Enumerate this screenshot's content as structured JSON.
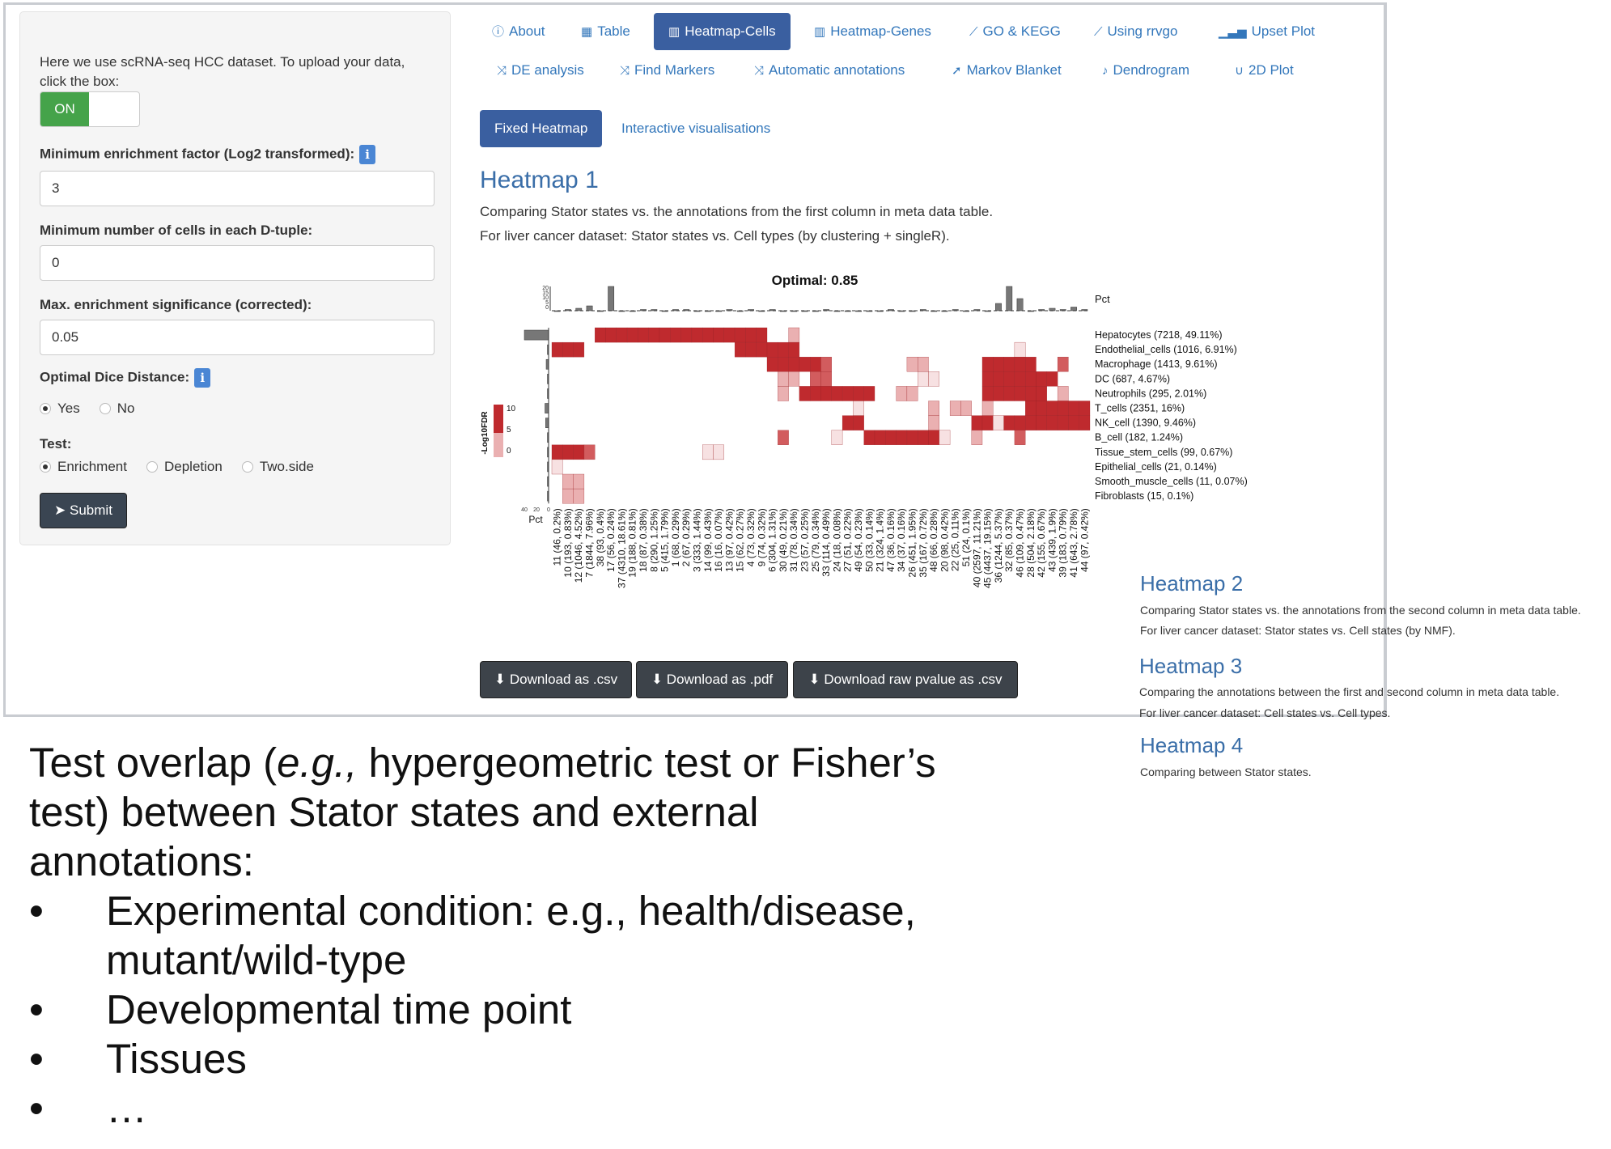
{
  "sidebar": {
    "intro_text": "Here we use scRNA-seq HCC dataset. To upload your data, click the box:",
    "toggle_label": "ON",
    "min_enrichment_label": "Minimum enrichment factor (Log2 transformed):",
    "min_enrichment_value": "3",
    "min_cells_label": "Minimum number of cells in each D-tuple:",
    "min_cells_value": "0",
    "max_sig_label": "Max. enrichment significance (corrected):",
    "max_sig_value": "0.05",
    "dice_label": "Optimal Dice Distance:",
    "dice_options": [
      "Yes",
      "No"
    ],
    "dice_selected": "Yes",
    "test_label": "Test:",
    "test_options": [
      "Enrichment",
      "Depletion",
      "Two.side"
    ],
    "test_selected": "Enrichment",
    "submit_label": "Submit",
    "info_icon": "i"
  },
  "tabs_row1": [
    {
      "label": "About",
      "icon": "info-icon",
      "glyph": "ⓘ"
    },
    {
      "label": "Table",
      "icon": "table-icon",
      "glyph": "▦"
    },
    {
      "label": "Heatmap-Cells",
      "icon": "map-icon",
      "glyph": "🗺",
      "active": true
    },
    {
      "label": "Heatmap-Genes",
      "icon": "map-icon",
      "glyph": "🗺"
    },
    {
      "label": "GO & KEGG",
      "icon": "line-chart-icon",
      "glyph": "📈"
    },
    {
      "label": "Using rrvgo",
      "icon": "line-chart-icon",
      "glyph": "📈"
    },
    {
      "label": "Upset Plot",
      "icon": "signal-icon",
      "glyph": "📶"
    }
  ],
  "tabs_row2": [
    {
      "label": "DE analysis",
      "icon": "random-icon",
      "glyph": "⤨"
    },
    {
      "label": "Find Markers",
      "icon": "random-icon",
      "glyph": "⤨"
    },
    {
      "label": "Automatic annotations",
      "icon": "random-icon",
      "glyph": "⤨"
    },
    {
      "label": "Markov Blanket",
      "icon": "location-arrow-icon",
      "glyph": "➤"
    },
    {
      "label": "Dendrogram",
      "icon": "bell-icon",
      "glyph": "🔔"
    },
    {
      "label": "2D Plot",
      "icon": "magnet-icon",
      "glyph": "∪"
    }
  ],
  "subtabs": {
    "fixed": "Fixed Heatmap",
    "interactive": "Interactive visualisations"
  },
  "heatmap1": {
    "title": "Heatmap 1",
    "desc1": "Comparing Stator states vs. the annotations from the first column in meta data table.",
    "desc2": "For liver cancer dataset: Stator states vs. Cell types (by clustering + singleR)."
  },
  "heatmap_figure": {
    "title": "Optimal: 0.85",
    "pct_label": "Pct",
    "legend_title": "-Log10FDR",
    "legend_ticks": [
      "10",
      "5",
      "0"
    ],
    "top_ticks": [
      "20",
      "15",
      "10",
      "5",
      "0"
    ],
    "bottom_ticks": [
      "0",
      "20",
      "40"
    ],
    "rows": [
      "Hepatocytes (7218, 49.11%)",
      "Endothelial_cells (1016, 6.91%)",
      "Macrophage (1413, 9.61%)",
      "DC (687, 4.67%)",
      "Neutrophils (295, 2.01%)",
      "T_cells (2351, 16%)",
      "NK_cell (1390, 9.46%)",
      "B_cell (182, 1.24%)",
      "Tissue_stem_cells (99, 0.67%)",
      "Epithelial_cells (21, 0.14%)",
      "Smooth_muscle_cells (11, 0.07%)",
      "Fibroblasts (15, 0.1%)"
    ],
    "columns": [
      "11 (46, 0.2%)",
      "10 (193, 0.83%)",
      "12 (1046, 4.52%)",
      "7 (1844, 7.96%)",
      "38 (93, 0.4%)",
      "17 (56, 0.24%)",
      "37 (4310, 18.61%)",
      "19 (188, 0.81%)",
      "18 (87, 0.38%)",
      "8 (290, 1.25%)",
      "5 (415, 1.79%)",
      "1 (68, 0.29%)",
      "2 (67, 0.29%)",
      "3 (333, 1.44%)",
      "14 (99, 0.43%)",
      "16 (16, 0.07%)",
      "13 (97, 0.42%)",
      "15 (62, 0.27%)",
      "4 (73, 0.32%)",
      "9 (74, 0.32%)",
      "6 (304, 1.31%)",
      "30 (49, 0.21%)",
      "31 (78, 0.34%)",
      "23 (57, 0.25%)",
      "25 (79, 0.34%)",
      "33 (114, 0.49%)",
      "24 (18, 0.08%)",
      "27 (51, 0.22%)",
      "49 (54, 0.23%)",
      "50 (33, 0.14%)",
      "21 (324, 1.4%)",
      "47 (36, 0.16%)",
      "34 (37, 0.16%)",
      "26 (451, 1.95%)",
      "35 (167, 0.72%)",
      "48 (66, 0.28%)",
      "20 (98, 0.42%)",
      "22 (25, 0.11%)",
      "51 (24, 0.1%)",
      "40 (2597, 11.21%)",
      "45 (4437, 19.15%)",
      "36 (1244, 5.37%)",
      "32 (85, 0.37%)",
      "46 (109, 0.47%)",
      "28 (504, 2.18%)",
      "42 (155, 0.67%)",
      "43 (439, 1.9%)",
      "39 (183, 0.79%)",
      "41 (643, 2.78%)",
      "44 (97, 0.42%)"
    ],
    "top_bar_values": [
      0,
      1,
      2,
      4,
      0,
      20,
      0,
      0,
      1,
      1,
      0,
      1,
      1,
      0,
      0,
      0,
      1,
      0,
      1,
      0,
      1,
      0,
      0,
      0,
      0,
      1,
      0,
      0,
      0,
      0,
      0,
      1,
      0,
      0,
      1,
      0,
      0,
      1,
      0,
      1,
      0,
      6,
      20,
      10,
      0,
      1,
      2,
      1,
      3,
      1
    ],
    "side_bar_values": [
      40,
      2,
      4,
      2,
      1,
      6,
      5,
      1,
      1,
      0.5,
      0.5,
      0.5
    ],
    "cell_colors": {
      "high": "#bf2a2e",
      "mid": "#d25c5e",
      "low": "#eab0b1",
      "faint": "#f7e1e2"
    }
  },
  "downloads": [
    {
      "label": "Download as .csv",
      "icon": "download-icon"
    },
    {
      "label": "Download as .pdf",
      "icon": "download-icon"
    },
    {
      "label": "Download raw pvalue as .csv",
      "icon": "download-icon"
    }
  ],
  "other_heatmaps": [
    {
      "title": "Heatmap 2",
      "desc1": "Comparing Stator states vs. the annotations from the second column in meta data table.",
      "desc2": "For liver cancer dataset: Stator states vs. Cell states (by NMF)."
    },
    {
      "title": "Heatmap 3",
      "desc1": "Comparing the annotations between the first and second column in meta data table.",
      "desc2": "For liver cancer dataset: Cell states vs. Cell types."
    },
    {
      "title": "Heatmap 4",
      "desc1": "Comparing between Stator states.",
      "desc2": ""
    }
  ],
  "bottom_text": {
    "line1": "Test overlap (",
    "line1_italic": "e.g.,",
    "line1_rest": " hypergeometric test or Fisher’s",
    "line2": "test) between Stator states and external",
    "line3": "annotations:",
    "bullets": [
      "Experimental condition: e.g., health/disease,",
      "Developmental time point",
      "Tissues",
      "…"
    ],
    "bullet1_cont": "mutant/wild-type",
    "bullet_glyph": "•"
  },
  "colors": {
    "accent": "#3a5fa0",
    "link": "#3377bb",
    "toggle_on": "#45a34a",
    "submit": "#3a4552",
    "heat_title": "#3a6ea8"
  }
}
